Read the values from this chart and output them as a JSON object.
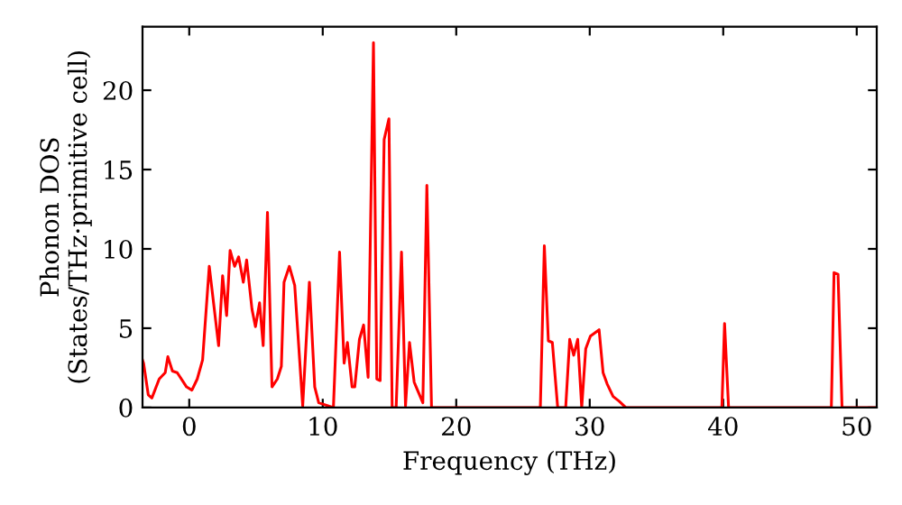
{
  "chart_data": {
    "type": "line",
    "xlabel": "Frequency (THz)",
    "ylabel": "Phonon DOS\n(States/THz·primitive cell)",
    "xlim": [
      -3.5,
      51.5
    ],
    "ylim": [
      0,
      24
    ],
    "xticks": [
      0,
      10,
      20,
      30,
      40,
      50
    ],
    "yticks": [
      0,
      5,
      10,
      15,
      20
    ],
    "grid": false,
    "legend": false,
    "marker": "none",
    "line_style": "solid",
    "series": [
      {
        "color": "#ff0000",
        "x": [
          -3.5,
          -3.42,
          -3.07,
          -2.8,
          -2.25,
          -1.8,
          -1.6,
          -1.26,
          -0.9,
          -0.2,
          0.2,
          0.6,
          1.0,
          1.5,
          2.2,
          2.5,
          2.8,
          3.06,
          3.4,
          3.7,
          4.05,
          4.3,
          4.7,
          4.96,
          5.27,
          5.54,
          5.86,
          6.2,
          6.6,
          6.9,
          7.1,
          7.5,
          7.9,
          8.5,
          9.0,
          9.4,
          9.7,
          10.8,
          11.26,
          11.6,
          11.85,
          12.2,
          12.4,
          12.75,
          13.06,
          13.4,
          13.8,
          14.05,
          14.3,
          14.6,
          14.96,
          15.2,
          15.5,
          15.9,
          16.2,
          16.5,
          16.85,
          16.95,
          17.5,
          17.8,
          18.15,
          26.3,
          26.6,
          26.9,
          27.2,
          27.6,
          28.2,
          28.5,
          28.8,
          29.1,
          29.4,
          29.7,
          30.05,
          30.7,
          31.0,
          31.3,
          31.75,
          32.2,
          32.7,
          39.9,
          40.1,
          40.4,
          48.1,
          48.3,
          48.6,
          48.9,
          51.5
        ],
        "values": [
          3.0,
          2.8,
          0.8,
          0.6,
          1.8,
          2.2,
          3.2,
          2.3,
          2.2,
          1.3,
          1.1,
          1.8,
          3.0,
          8.9,
          3.9,
          8.3,
          5.8,
          9.9,
          8.9,
          9.5,
          7.9,
          9.3,
          6.2,
          5.1,
          6.6,
          3.9,
          12.3,
          1.3,
          1.8,
          2.6,
          7.9,
          8.9,
          7.7,
          0.1,
          7.9,
          1.3,
          0.3,
          0,
          9.8,
          2.8,
          4.1,
          1.3,
          1.3,
          4.3,
          5.2,
          1.9,
          23.0,
          1.8,
          1.7,
          16.9,
          18.2,
          0,
          0,
          9.8,
          0.1,
          4.1,
          1.6,
          1.4,
          0.3,
          14.0,
          0,
          0,
          10.2,
          4.2,
          4.1,
          0,
          0,
          4.3,
          3.3,
          4.3,
          0,
          3.7,
          4.5,
          4.9,
          2.2,
          1.5,
          0.7,
          0.4,
          0,
          0,
          5.3,
          0,
          0,
          8.5,
          8.4,
          0,
          0
        ]
      }
    ]
  }
}
